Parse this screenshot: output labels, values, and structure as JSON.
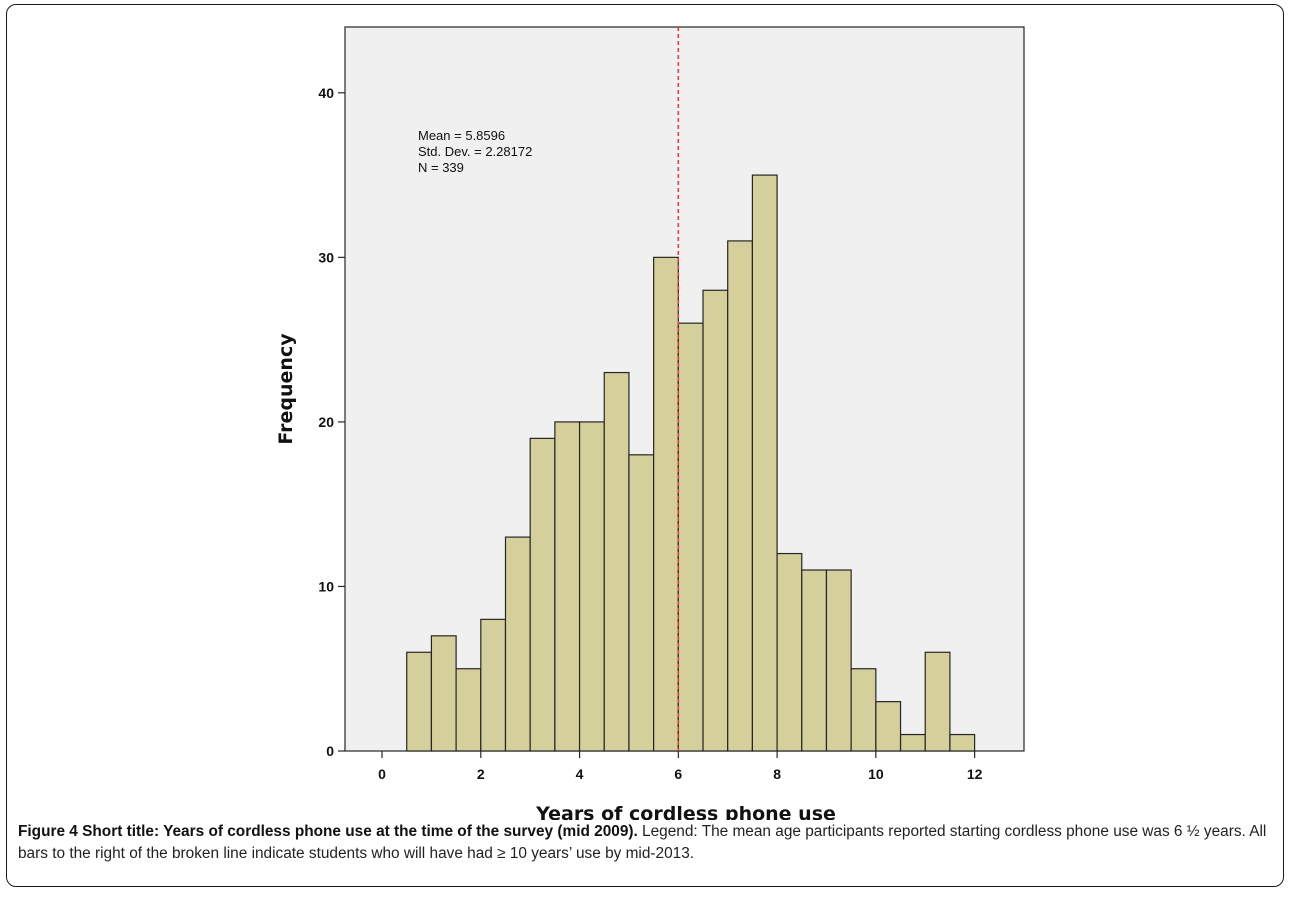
{
  "chart_data": {
    "type": "bar",
    "subtype": "histogram",
    "bin_width": 0.5,
    "bins": [
      {
        "x0": 0.5,
        "x1": 1.0,
        "count": 6
      },
      {
        "x0": 1.0,
        "x1": 1.5,
        "count": 7
      },
      {
        "x0": 1.5,
        "x1": 2.0,
        "count": 5
      },
      {
        "x0": 2.0,
        "x1": 2.5,
        "count": 8
      },
      {
        "x0": 2.5,
        "x1": 3.0,
        "count": 13
      },
      {
        "x0": 3.0,
        "x1": 3.5,
        "count": 19
      },
      {
        "x0": 3.5,
        "x1": 4.0,
        "count": 20
      },
      {
        "x0": 4.0,
        "x1": 4.5,
        "count": 20
      },
      {
        "x0": 4.5,
        "x1": 5.0,
        "count": 23
      },
      {
        "x0": 5.0,
        "x1": 5.5,
        "count": 18
      },
      {
        "x0": 5.5,
        "x1": 6.0,
        "count": 30
      },
      {
        "x0": 6.0,
        "x1": 6.5,
        "count": 26
      },
      {
        "x0": 6.5,
        "x1": 7.0,
        "count": 28
      },
      {
        "x0": 7.0,
        "x1": 7.5,
        "count": 31
      },
      {
        "x0": 7.5,
        "x1": 8.0,
        "count": 35
      },
      {
        "x0": 8.0,
        "x1": 8.5,
        "count": 12
      },
      {
        "x0": 8.5,
        "x1": 9.0,
        "count": 11
      },
      {
        "x0": 9.0,
        "x1": 9.5,
        "count": 11
      },
      {
        "x0": 9.5,
        "x1": 10.0,
        "count": 5
      },
      {
        "x0": 10.0,
        "x1": 10.5,
        "count": 3
      },
      {
        "x0": 10.5,
        "x1": 11.0,
        "count": 1
      },
      {
        "x0": 11.0,
        "x1": 11.5,
        "count": 6
      },
      {
        "x0": 11.5,
        "x1": 12.0,
        "count": 1
      }
    ],
    "xlabel": "Years of cordless phone use",
    "ylabel": "Frequency",
    "xlim": [
      -0.75,
      13.0
    ],
    "ylim": [
      0,
      44
    ],
    "xticks": [
      0,
      2,
      4,
      6,
      8,
      10,
      12
    ],
    "yticks": [
      0,
      10,
      20,
      30,
      40
    ],
    "reference_line": {
      "x": 6,
      "style": "dashed",
      "color": "#e0403a"
    },
    "stats": [
      "Mean = 5.8596",
      "Std. Dev. = 2.28172",
      "N = 339"
    ],
    "grid": false,
    "colors": {
      "bar_fill": "#d4cf9b",
      "bar_stroke": "#262626",
      "plot_bg": "#f0f0f0"
    }
  },
  "caption": {
    "bold": "Figure 4 Short title: Years of cordless phone use at the time of the survey (mid 2009).",
    "text": " Legend: The mean age participants reported starting cordless phone use was 6 ½ years. All bars to the right of the broken line indicate students who will have had ≥ 10 years’ use by mid-2013."
  }
}
